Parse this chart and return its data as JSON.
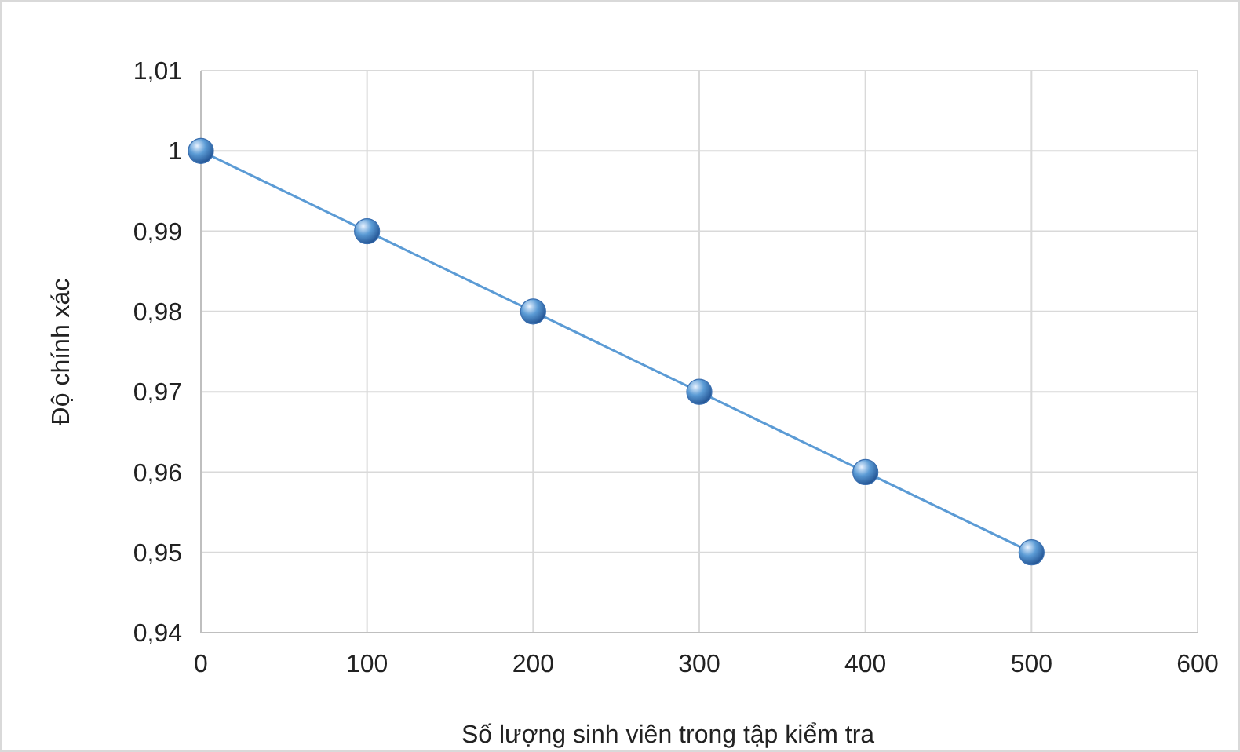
{
  "chart_data": {
    "type": "line",
    "xlabel": "Số lượng sinh viên trong tập kiểm tra",
    "ylabel": "Độ chính xác",
    "x": [
      0,
      100,
      200,
      300,
      400,
      500
    ],
    "series": [
      {
        "color": "#5b9bd5",
        "values": [
          1,
          0.99,
          0.98,
          0.97,
          0.96,
          0.95
        ]
      }
    ],
    "xlim": [
      0,
      600
    ],
    "xticks": [
      0,
      100,
      200,
      300,
      400,
      500,
      600
    ],
    "ylim": [
      0.94,
      1.01
    ],
    "yticks": [
      {
        "value": 0.94,
        "label": "0,94"
      },
      {
        "value": 0.95,
        "label": "0,95"
      },
      {
        "value": 0.96,
        "label": "0,96"
      },
      {
        "value": 0.97,
        "label": "0,97"
      },
      {
        "value": 0.98,
        "label": "0,98"
      },
      {
        "value": 0.99,
        "label": "0,99"
      },
      1,
      {
        "value": 1.01,
        "label": "1,01"
      }
    ],
    "grid": true,
    "marker": "circle",
    "line_style": "solid"
  }
}
